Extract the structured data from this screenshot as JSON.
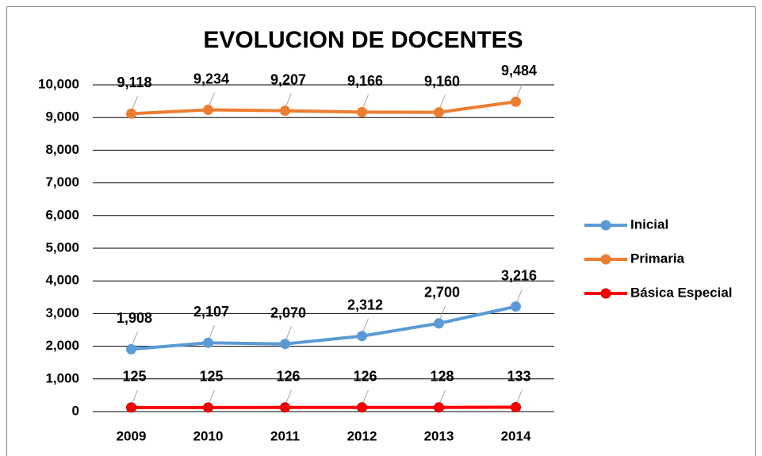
{
  "chart_data": {
    "type": "line",
    "title": "EVOLUCION DE DOCENTES",
    "categories": [
      "2009",
      "2010",
      "2011",
      "2012",
      "2013",
      "2014"
    ],
    "series": [
      {
        "name": "Inicial",
        "color": "#5b9bd5",
        "values": [
          1908,
          2107,
          2070,
          2312,
          2700,
          3216
        ],
        "value_labels": [
          "1,908",
          "2,107",
          "2,070",
          "2,312",
          "2,700",
          "3,216"
        ]
      },
      {
        "name": "Primaria",
        "color": "#ed7d31",
        "values": [
          9118,
          9234,
          9207,
          9166,
          9160,
          9484
        ],
        "value_labels": [
          "9,118",
          "9,234",
          "9,207",
          "9,166",
          "9,160",
          "9,484"
        ]
      },
      {
        "name": "Básica Especial",
        "color": "#ff0000",
        "values": [
          125,
          125,
          126,
          126,
          128,
          133
        ],
        "value_labels": [
          "125",
          "125",
          "126",
          "126",
          "128",
          "133"
        ]
      }
    ],
    "ylim": [
      0,
      10000
    ],
    "yticks": [
      0,
      {
        "value": 1000,
        "label": "1,000"
      },
      {
        "value": 2000,
        "label": "2,000"
      },
      {
        "value": 3000,
        "label": "3,000"
      },
      {
        "value": 4000,
        "label": "4,000"
      },
      {
        "value": 5000,
        "label": "5,000"
      },
      {
        "value": 6000,
        "label": "6,000"
      },
      {
        "value": 7000,
        "label": "7,000"
      },
      {
        "value": 8000,
        "label": "8,000"
      },
      {
        "value": 9000,
        "label": "9,000"
      },
      {
        "value": 10000,
        "label": "10,000"
      }
    ],
    "grid": true,
    "legend": "right"
  }
}
